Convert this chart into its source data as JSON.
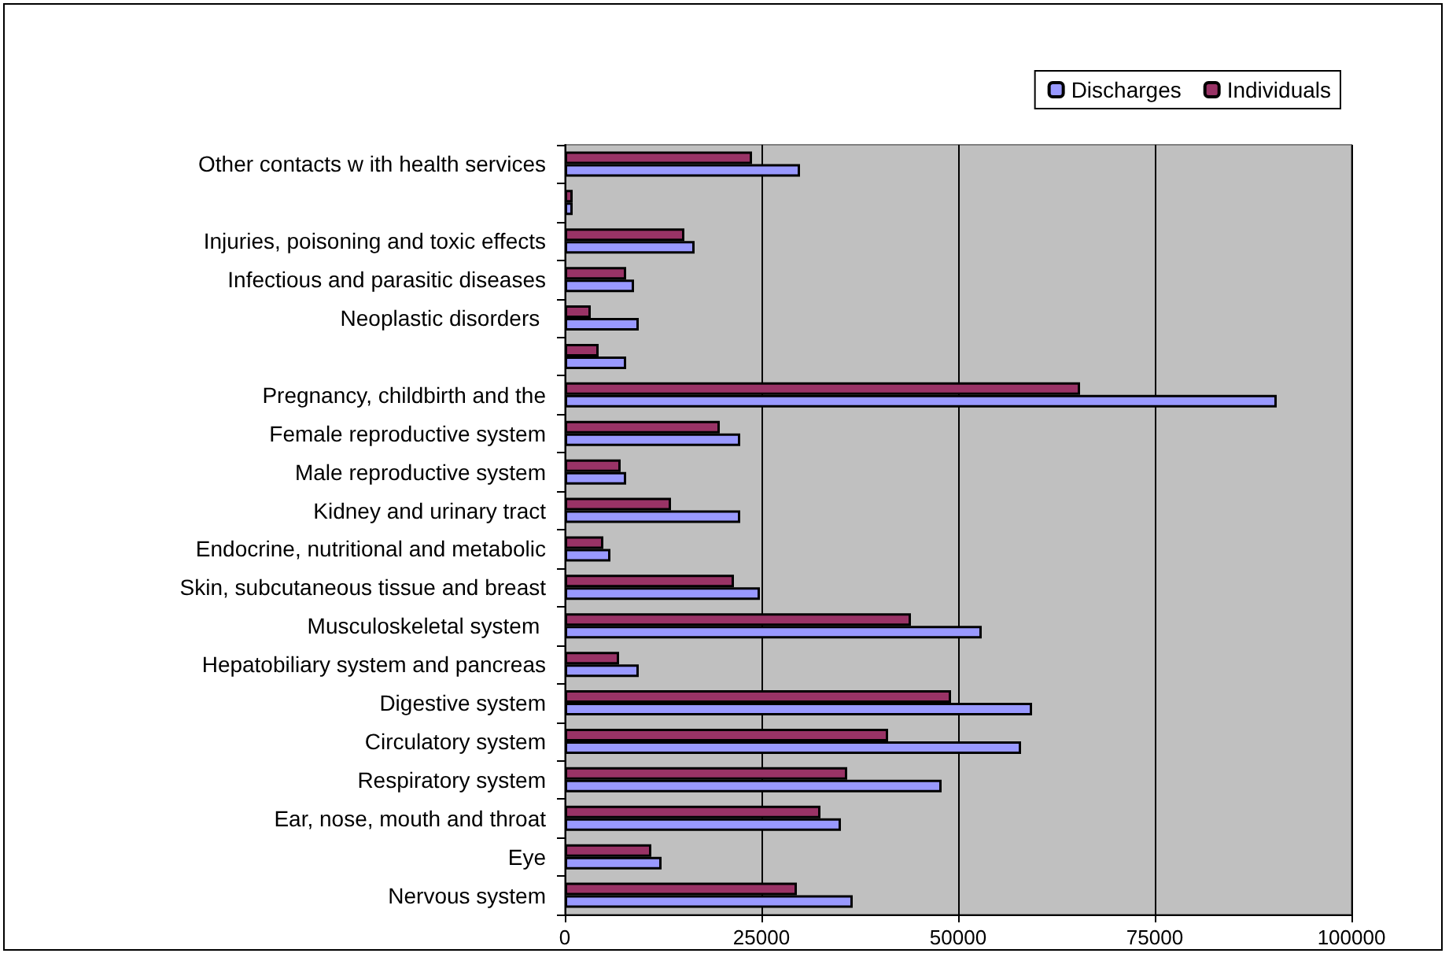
{
  "chart_data": {
    "type": "bar",
    "orientation": "horizontal",
    "categories": [
      "Other contacts w ith health services",
      null,
      "Injuries, poisoning and toxic effects",
      "Infectious and parasitic diseases",
      "Neoplastic disorders ",
      null,
      "Pregnancy, childbirth and the",
      "Female reproductive system",
      "Male reproductive system",
      "Kidney and urinary tract",
      "Endocrine, nutritional and metabolic",
      "Skin, subcutaneous tissue and breast",
      "Musculoskeletal system ",
      "Hepatobiliary system and pancreas",
      "Digestive system",
      "Circulatory system",
      "Respiratory system",
      "Ear, nose, mouth and throat",
      "Eye",
      "Nervous system"
    ],
    "series": [
      {
        "name": "Discharges",
        "color": "#9999ff",
        "values": [
          29900,
          1000,
          16500,
          8800,
          9400,
          7800,
          90500,
          22300,
          7800,
          22300,
          5800,
          24800,
          53000,
          9400,
          59400,
          58000,
          47900,
          35100,
          12300,
          36600
        ]
      },
      {
        "name": "Individuals",
        "color": "#993366",
        "values": [
          23800,
          1000,
          15200,
          7800,
          3300,
          4300,
          65500,
          19700,
          7100,
          13500,
          4900,
          21500,
          44000,
          6900,
          49100,
          41100,
          35900,
          32500,
          11000,
          29500
        ]
      }
    ],
    "xlim": [
      0,
      100000
    ],
    "xticks": [
      0,
      25000,
      50000,
      75000,
      100000
    ],
    "grid": "x",
    "legend": "top right"
  }
}
